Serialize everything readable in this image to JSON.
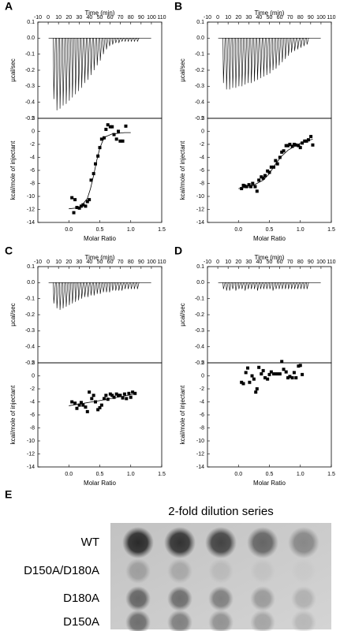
{
  "chart_data": [
    {
      "type": "spike",
      "panel_label": "A",
      "xlabel": "Time (min)",
      "ylabel": "µcal/sec",
      "baseline": 0,
      "x": [
        5,
        8,
        11,
        14,
        17,
        20,
        23,
        26,
        29,
        32,
        35,
        38,
        41,
        44,
        47,
        50,
        53,
        56,
        59,
        62,
        65,
        68,
        71,
        74,
        77,
        80,
        83,
        86
      ],
      "values": [
        -0.38,
        -0.45,
        -0.44,
        -0.42,
        -0.41,
        -0.39,
        -0.37,
        -0.35,
        -0.33,
        -0.31,
        -0.28,
        -0.26,
        -0.23,
        -0.2,
        -0.17,
        -0.14,
        -0.1,
        -0.07,
        -0.05,
        -0.04,
        -0.03,
        -0.03,
        -0.02,
        -0.02,
        -0.02,
        -0.02,
        -0.02,
        -0.02
      ],
      "color": "#000000",
      "xlim": [
        -10,
        110
      ],
      "xticks": [
        -10,
        0,
        10,
        20,
        30,
        40,
        50,
        60,
        70,
        80,
        90,
        100,
        110
      ],
      "ylim": [
        -0.5,
        0.1
      ],
      "yticks": [
        0.1,
        {
          "value": 0,
          "label": "0.0"
        },
        -0.1,
        -0.2,
        -0.3,
        -0.4,
        -0.5
      ]
    },
    {
      "type": "scatter",
      "xlabel": "Molar Ratio",
      "ylabel": "kcal/mole of injectant",
      "series": [
        {
          "color": "#000000",
          "x": [
            0.05,
            0.08,
            0.1,
            0.13,
            0.17,
            0.2,
            0.23,
            0.27,
            0.3,
            0.33,
            0.36,
            0.4,
            0.43,
            0.47,
            0.5,
            0.53,
            0.57,
            0.6,
            0.63,
            0.67,
            0.7,
            0.73,
            0.77,
            0.8,
            0.83,
            0.87,
            0.92
          ],
          "values": [
            -10.2,
            -12.5,
            -10.5,
            -11.7,
            -11.8,
            -11.5,
            -11.3,
            -11.5,
            -10.8,
            -10.5,
            -7.5,
            -6.5,
            -5,
            -3.8,
            -2.5,
            -1.2,
            -1,
            0.3,
            1,
            0.7,
            0.7,
            -0.5,
            -1.2,
            0,
            -1.5,
            -1.5,
            0.8
          ]
        },
        {
          "color": "#000000",
          "style": "line",
          "x": [
            0,
            0.1,
            0.2,
            0.3,
            0.35,
            0.4,
            0.45,
            0.5,
            0.55,
            0.6,
            0.7,
            0.8,
            0.9,
            1.0
          ],
          "values": [
            -11.9,
            -11.8,
            -11.5,
            -10.3,
            -8.8,
            -6.8,
            -4.5,
            -2.6,
            -1.4,
            -0.8,
            -0.4,
            -0.3,
            -0.2,
            -0.2
          ]
        }
      ],
      "xlim": [
        -0.5,
        1.5
      ],
      "xticks": [
        {
          "value": 0,
          "label": "0.0"
        },
        0.5,
        {
          "value": 1,
          "label": "1.0"
        },
        1.5
      ],
      "ylim": [
        -14,
        2
      ],
      "yticks": [
        2,
        0,
        -2,
        -4,
        -6,
        -8,
        -10,
        -12,
        -14
      ]
    },
    {
      "type": "spike",
      "panel_label": "B",
      "xlabel": "Time (min)",
      "ylabel": "µcal/sec",
      "baseline": 0,
      "x": [
        5,
        8,
        11,
        14,
        17,
        20,
        23,
        26,
        29,
        32,
        35,
        38,
        41,
        44,
        47,
        50,
        53,
        56,
        59,
        62,
        65,
        68,
        71,
        74,
        77,
        80,
        83,
        86
      ],
      "values": [
        -0.28,
        -0.32,
        -0.32,
        -0.31,
        -0.31,
        -0.3,
        -0.3,
        -0.29,
        -0.28,
        -0.28,
        -0.27,
        -0.26,
        -0.25,
        -0.24,
        -0.23,
        -0.22,
        -0.2,
        -0.19,
        -0.17,
        -0.15,
        -0.13,
        -0.11,
        -0.09,
        -0.08,
        -0.07,
        -0.06,
        -0.05,
        -0.04
      ],
      "color": "#000000",
      "xlim": [
        -10,
        110
      ],
      "xticks": [
        -10,
        0,
        10,
        20,
        30,
        40,
        50,
        60,
        70,
        80,
        90,
        100,
        110
      ],
      "ylim": [
        -0.5,
        0.1
      ],
      "yticks": [
        0.1,
        {
          "value": 0,
          "label": "0.0"
        },
        -0.1,
        -0.2,
        -0.3,
        -0.4,
        -0.5
      ]
    },
    {
      "type": "scatter",
      "xlabel": "Molar Ratio",
      "ylabel": "kcal/mole of injectant",
      "series": [
        {
          "color": "#000000",
          "x": [
            0.05,
            0.08,
            0.1,
            0.13,
            0.17,
            0.2,
            0.23,
            0.27,
            0.3,
            0.33,
            0.37,
            0.4,
            0.43,
            0.47,
            0.5,
            0.53,
            0.57,
            0.6,
            0.63,
            0.67,
            0.7,
            0.73,
            0.77,
            0.8,
            0.83,
            0.87,
            0.9,
            0.93,
            0.97,
            1.0,
            1.03,
            1.07,
            1.1,
            1.13,
            1.17,
            1.2
          ],
          "values": [
            -8.8,
            -8.3,
            -8.4,
            -8.5,
            -8.2,
            -8.5,
            -8,
            -8.5,
            -9.2,
            -7.5,
            -7,
            -7.2,
            -6.8,
            -6.1,
            -6.3,
            -5.5,
            -5.5,
            -4.5,
            -5,
            -4,
            -3.2,
            -3,
            -2.2,
            -2.2,
            -2,
            -2.3,
            -2,
            -2.1,
            -2.2,
            -2.5,
            -1.8,
            -1.5,
            -1.5,
            -1.3,
            -0.8,
            -2.1
          ]
        },
        {
          "color": "#000000",
          "style": "line",
          "x": [
            0,
            0.2,
            0.4,
            0.5,
            0.6,
            0.7,
            0.8,
            1.0,
            1.2
          ],
          "values": [
            -8.8,
            -8.5,
            -7.5,
            -6.5,
            -5,
            -3.8,
            -2.9,
            -1.8,
            -1.2
          ]
        }
      ],
      "xlim": [
        -0.5,
        1.5
      ],
      "xticks": [
        {
          "value": 0,
          "label": "0.0"
        },
        0.5,
        {
          "value": 1,
          "label": "1.0"
        },
        1.5
      ],
      "ylim": [
        -14,
        2
      ],
      "yticks": [
        2,
        0,
        -2,
        -4,
        -6,
        -8,
        -10,
        -12,
        -14
      ]
    },
    {
      "type": "spike",
      "panel_label": "C",
      "xlabel": "Time (min)",
      "ylabel": "µcal/sec",
      "baseline": 0,
      "x": [
        5,
        8,
        11,
        14,
        17,
        20,
        23,
        26,
        29,
        32,
        35,
        38,
        41,
        44,
        47,
        50,
        53,
        56,
        59,
        62,
        65,
        68,
        71,
        74,
        77,
        80,
        83,
        86
      ],
      "values": [
        -0.13,
        -0.16,
        -0.17,
        -0.16,
        -0.15,
        -0.14,
        -0.13,
        -0.12,
        -0.11,
        -0.1,
        -0.09,
        -0.09,
        -0.08,
        -0.08,
        -0.07,
        -0.07,
        -0.06,
        -0.06,
        -0.06,
        -0.05,
        -0.05,
        -0.05,
        -0.05,
        -0.04,
        -0.04,
        -0.04,
        -0.04,
        -0.04
      ],
      "color": "#000000",
      "xlim": [
        -10,
        110
      ],
      "xticks": [
        -10,
        0,
        10,
        20,
        30,
        40,
        50,
        60,
        70,
        80,
        90,
        100,
        110
      ],
      "ylim": [
        -0.5,
        0.1
      ],
      "yticks": [
        0.1,
        {
          "value": 0,
          "label": "0.0"
        },
        -0.1,
        -0.2,
        -0.3,
        -0.4,
        -0.5
      ]
    },
    {
      "type": "scatter",
      "xlabel": "Molar Ratio",
      "ylabel": "kcal/mole of injectant",
      "series": [
        {
          "color": "#000000",
          "x": [
            0.05,
            0.1,
            0.13,
            0.17,
            0.2,
            0.23,
            0.27,
            0.3,
            0.33,
            0.37,
            0.4,
            0.43,
            0.47,
            0.5,
            0.53,
            0.57,
            0.6,
            0.63,
            0.67,
            0.7,
            0.73,
            0.77,
            0.8,
            0.83,
            0.87,
            0.9,
            0.93,
            0.97,
            1.0,
            1.03,
            1.07
          ],
          "values": [
            -4,
            -4.2,
            -5,
            -4.5,
            -4.1,
            -4.5,
            -4.8,
            -5.5,
            -2.5,
            -3.5,
            -3,
            -4,
            -5.2,
            -4.9,
            -4.5,
            -3.5,
            -3,
            -3.6,
            -2.8,
            -3,
            -3.3,
            -2.8,
            -3,
            -3,
            -3.4,
            -2.8,
            -3.5,
            -2.7,
            -3.3,
            -2.5,
            -2.7
          ]
        },
        {
          "color": "#000000",
          "style": "line",
          "x": [
            0,
            0.5,
            1.07
          ],
          "values": [
            -4.6,
            -3.8,
            -2.8
          ]
        }
      ],
      "xlim": [
        -0.5,
        1.5
      ],
      "xticks": [
        {
          "value": 0,
          "label": "0.0"
        },
        0.5,
        {
          "value": 1,
          "label": "1.0"
        },
        1.5
      ],
      "ylim": [
        -14,
        2
      ],
      "yticks": [
        2,
        0,
        -2,
        -4,
        -6,
        -8,
        -10,
        -12,
        -14
      ]
    },
    {
      "type": "spike",
      "panel_label": "D",
      "xlabel": "Time (min)",
      "ylabel": "µcal/sec",
      "baseline": 0,
      "x": [
        5,
        8,
        11,
        14,
        17,
        20,
        23,
        26,
        29,
        32,
        35,
        38,
        41,
        44,
        47,
        50,
        53,
        56,
        59,
        62,
        65,
        68,
        71,
        74,
        77,
        80,
        83,
        86
      ],
      "values": [
        -0.04,
        -0.05,
        -0.05,
        -0.04,
        -0.05,
        -0.04,
        -0.04,
        -0.05,
        -0.04,
        -0.04,
        -0.04,
        -0.05,
        -0.04,
        -0.04,
        -0.04,
        -0.04,
        -0.05,
        -0.04,
        -0.04,
        -0.04,
        -0.04,
        -0.04,
        -0.04,
        -0.04,
        -0.04,
        -0.04,
        -0.04,
        -0.04
      ],
      "color": "#000000",
      "xlim": [
        -10,
        110
      ],
      "xticks": [
        -10,
        0,
        10,
        20,
        30,
        40,
        50,
        60,
        70,
        80,
        90,
        100,
        110
      ],
      "ylim": [
        -0.5,
        0.1
      ],
      "yticks": [
        0.1,
        {
          "value": 0,
          "label": "0.0"
        },
        -0.1,
        -0.2,
        -0.3,
        -0.4,
        -0.5
      ]
    },
    {
      "type": "scatter",
      "xlabel": "Molar Ratio",
      "ylabel": "kcal/mole of injectant",
      "series": [
        {
          "color": "#000000",
          "x": [
            0.05,
            0.08,
            0.12,
            0.15,
            0.18,
            0.22,
            0.25,
            0.28,
            0.3,
            0.33,
            0.37,
            0.4,
            0.43,
            0.47,
            0.5,
            0.53,
            0.57,
            0.6,
            0.63,
            0.67,
            0.7,
            0.73,
            0.77,
            0.8,
            0.83,
            0.87,
            0.9,
            0.93,
            0.97,
            1.0,
            1.03
          ],
          "values": [
            -1,
            -1.2,
            0.5,
            1.2,
            -1,
            0,
            -0.5,
            -2.5,
            -2,
            1.3,
            0.3,
            0.8,
            -0.3,
            -0.5,
            0.2,
            0.6,
            0.3,
            0.3,
            0.3,
            0.3,
            2.2,
            1,
            0.6,
            -0.3,
            -0.1,
            -0.3,
            0.5,
            -0.3,
            1.5,
            1.6,
            0.2
          ]
        }
      ],
      "xlim": [
        -0.5,
        1.5
      ],
      "xticks": [
        {
          "value": 0,
          "label": "0.0"
        },
        0.5,
        {
          "value": 1,
          "label": "1.0"
        },
        1.5
      ],
      "ylim": [
        -14,
        2
      ],
      "yticks": [
        2,
        0,
        -2,
        -4,
        -6,
        -8,
        -10,
        -12,
        -14
      ]
    }
  ],
  "blot": {
    "label": "E",
    "title": "2-fold dilution series",
    "rows": [
      "WT",
      "D150A/D180A",
      "D180A",
      "D150A"
    ]
  }
}
